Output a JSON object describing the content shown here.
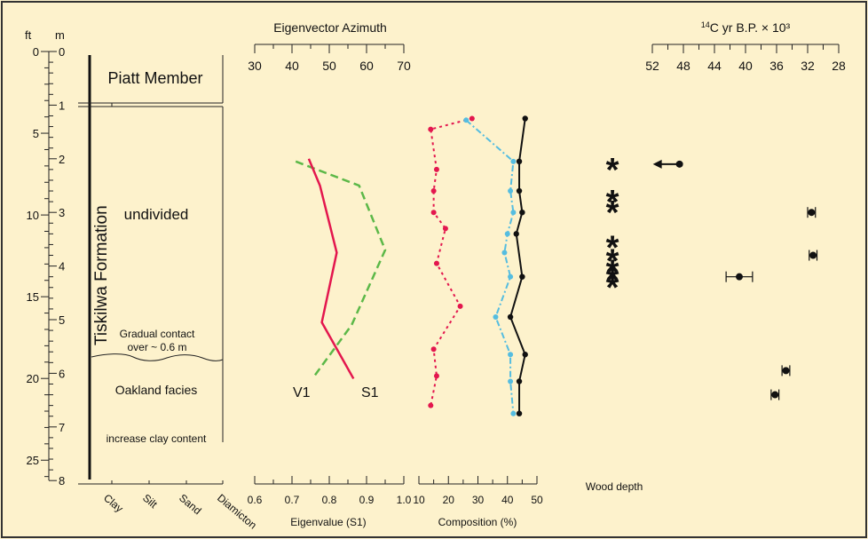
{
  "colors": {
    "background": "#fdf2cc",
    "frame": "#333333",
    "v1_series": "#5cb848",
    "s1_series": "#e3174e",
    "clay_series": "#e3174e",
    "silt_series": "#55bde0",
    "sand_series": "#111111"
  },
  "depth_axis": {
    "ft_label": "ft",
    "m_label": "m",
    "ft_ticks": [
      "0",
      "5",
      "10",
      "15",
      "20",
      "25"
    ],
    "m_ticks": [
      "0",
      "1",
      "2",
      "3",
      "4",
      "5",
      "6",
      "7",
      "8"
    ]
  },
  "stratigraphy": {
    "formation_label": "Tiskilwa Formation",
    "piatt_label": "Piatt Member",
    "undivided_label": "undivided",
    "contact_label_line1": "Gradual contact",
    "contact_label_line2": "over ~ 0.6 m",
    "oakland_label": "Oakland facies",
    "clay_increase_label": "increase clay content",
    "texture_labels": [
      "Clay",
      "Silt",
      "Sand",
      "Diamicton"
    ]
  },
  "chart_data": [
    {
      "type": "line",
      "title": "Eigenvector Azimuth",
      "xlabel": "Eigenvalue (S1)",
      "top_axis_ticks": [
        "30",
        "40",
        "50",
        "60",
        "70"
      ],
      "top_axis_range": [
        30,
        70
      ],
      "bottom_axis_ticks": [
        "0.6",
        "0.7",
        "0.8",
        "0.9",
        "1.0"
      ],
      "bottom_axis_range": [
        0.6,
        1.0
      ],
      "y_axis": "depth (m)",
      "series": [
        {
          "name": "V1",
          "axis": "azimuth",
          "points": [
            [
              41,
              2.05
            ],
            [
              58,
              2.5
            ],
            [
              65,
              3.7
            ],
            [
              56,
              5.1
            ],
            [
              46,
              6.05
            ]
          ]
        },
        {
          "name": "S1",
          "axis": "eigenvalue",
          "points": [
            [
              0.745,
              2.0
            ],
            [
              0.775,
              2.5
            ],
            [
              0.82,
              3.75
            ],
            [
              0.78,
              5.05
            ],
            [
              0.865,
              6.1
            ]
          ]
        }
      ]
    },
    {
      "type": "line",
      "xlabel": "Composition (%)",
      "bottom_axis_ticks": [
        "10",
        "20",
        "30",
        "40",
        "50"
      ],
      "x_range": [
        10,
        50
      ],
      "y_axis": "depth (m)",
      "series": [
        {
          "key": "clay",
          "points": [
            [
              28,
              1.25
            ],
            [
              14,
              1.45
            ],
            [
              16,
              2.2
            ],
            [
              15,
              2.6
            ],
            [
              15,
              3.0
            ],
            [
              19,
              3.3
            ],
            [
              16,
              3.95
            ],
            [
              24,
              4.75
            ],
            [
              15,
              5.55
            ],
            [
              16,
              6.05
            ],
            [
              14,
              6.6
            ]
          ]
        },
        {
          "key": "silt",
          "points": [
            [
              26,
              1.28
            ],
            [
              42,
              2.05
            ],
            [
              41,
              2.6
            ],
            [
              42,
              3.0
            ],
            [
              40,
              3.4
            ],
            [
              39,
              3.75
            ],
            [
              41,
              4.2
            ],
            [
              36,
              4.95
            ],
            [
              41,
              5.65
            ],
            [
              41,
              6.15
            ],
            [
              42,
              6.75
            ]
          ]
        },
        {
          "key": "sand",
          "points": [
            [
              46,
              1.25
            ],
            [
              44,
              2.05
            ],
            [
              44,
              2.6
            ],
            [
              45,
              3.0
            ],
            [
              43,
              3.4
            ],
            [
              45,
              4.2
            ],
            [
              41,
              4.95
            ],
            [
              46,
              5.65
            ],
            [
              44,
              6.15
            ],
            [
              44,
              6.75
            ]
          ]
        }
      ]
    },
    {
      "type": "scatter",
      "title": "14C yr B.P. × 10³",
      "title_sup": "14",
      "title_main": "C yr B.P. × 10³",
      "xlabel": "Wood depth",
      "top_axis_ticks": [
        "52",
        "48",
        "44",
        "40",
        "36",
        "32",
        "28"
      ],
      "x_range": [
        52,
        28
      ],
      "x_reversed": true,
      "y_axis": "depth (m)",
      "wood_sample_depths_m": [
        2.15,
        2.75,
        2.95,
        3.6,
        3.85,
        4.05,
        4.2,
        4.35
      ],
      "dates": [
        {
          "age_kyr": 48.5,
          "depth_m": 2.1,
          "older_than": true
        },
        {
          "age_kyr": 31.5,
          "depth_m": 3.0,
          "err": 0.5
        },
        {
          "age_kyr": 31.3,
          "depth_m": 3.8,
          "err": 0.5
        },
        {
          "age_kyr": 40.8,
          "depth_m": 4.2,
          "err": 1.7
        },
        {
          "age_kyr": 34.8,
          "depth_m": 5.95,
          "err": 0.5
        },
        {
          "age_kyr": 36.2,
          "depth_m": 6.4,
          "err": 0.5
        }
      ]
    }
  ]
}
